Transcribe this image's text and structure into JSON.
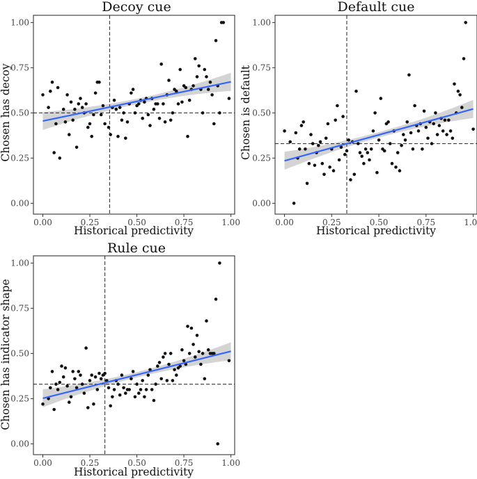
{
  "chart_data": [
    {
      "type": "scatter",
      "title": "Decoy cue",
      "xlabel": "Historical predictivity",
      "ylabel": "Chosen has decoy",
      "xlim": [
        -0.05,
        1.02
      ],
      "ylim": [
        -0.06,
        1.04
      ],
      "xticks": [
        0,
        0.25,
        0.5,
        0.75,
        1
      ],
      "xtick_labels": [
        "0.00",
        "0.25",
        "0.50",
        "0.75",
        "1.00"
      ],
      "yticks": [
        0,
        0.25,
        0.5,
        0.75,
        1
      ],
      "ytick_labels": [
        "0.00",
        "0.25",
        "0.50",
        "0.75",
        "1.00"
      ],
      "vline_x": 0.355,
      "hline_y": 0.5,
      "fit": {
        "x0": 0,
        "y0": 0.455,
        "x1": 1,
        "y1": 0.672,
        "band_halfwidth_ends": 0.05,
        "band_halfwidth_min": 0.015,
        "band_center_x": 0.5
      },
      "points": [
        [
          0.0,
          0.6
        ],
        [
          0.03,
          0.53
        ],
        [
          0.04,
          0.62
        ],
        [
          0.05,
          0.67
        ],
        [
          0.06,
          0.28
        ],
        [
          0.07,
          0.44
        ],
        [
          0.08,
          0.64
        ],
        [
          0.09,
          0.25
        ],
        [
          0.11,
          0.52
        ],
        [
          0.12,
          0.45
        ],
        [
          0.13,
          0.6
        ],
        [
          0.14,
          0.38
        ],
        [
          0.15,
          0.56
        ],
        [
          0.16,
          0.46
        ],
        [
          0.17,
          0.52
        ],
        [
          0.18,
          0.31
        ],
        [
          0.19,
          0.55
        ],
        [
          0.2,
          0.58
        ],
        [
          0.21,
          0.53
        ],
        [
          0.22,
          0.5
        ],
        [
          0.23,
          0.55
        ],
        [
          0.24,
          0.42
        ],
        [
          0.25,
          0.44
        ],
        [
          0.26,
          0.37
        ],
        [
          0.27,
          0.49
        ],
        [
          0.28,
          0.61
        ],
        [
          0.29,
          0.67
        ],
        [
          0.3,
          0.67
        ],
        [
          0.31,
          0.49
        ],
        [
          0.32,
          0.54
        ],
        [
          0.33,
          0.44
        ],
        [
          0.35,
          0.42
        ],
        [
          0.36,
          0.38
        ],
        [
          0.37,
          0.53
        ],
        [
          0.38,
          0.57
        ],
        [
          0.39,
          0.52
        ],
        [
          0.4,
          0.37
        ],
        [
          0.41,
          0.53
        ],
        [
          0.42,
          0.46
        ],
        [
          0.43,
          0.5
        ],
        [
          0.44,
          0.36
        ],
        [
          0.45,
          0.45
        ],
        [
          0.46,
          0.55
        ],
        [
          0.47,
          0.61
        ],
        [
          0.48,
          0.63
        ],
        [
          0.49,
          0.5
        ],
        [
          0.5,
          0.54
        ],
        [
          0.51,
          0.55
        ],
        [
          0.52,
          0.57
        ],
        [
          0.53,
          0.47
        ],
        [
          0.54,
          0.56
        ],
        [
          0.55,
          0.58
        ],
        [
          0.56,
          0.49
        ],
        [
          0.57,
          0.43
        ],
        [
          0.58,
          0.58
        ],
        [
          0.59,
          0.52
        ],
        [
          0.6,
          0.55
        ],
        [
          0.61,
          0.55
        ],
        [
          0.62,
          0.47
        ],
        [
          0.63,
          0.77
        ],
        [
          0.64,
          0.55
        ],
        [
          0.65,
          0.45
        ],
        [
          0.66,
          0.6
        ],
        [
          0.67,
          0.68
        ],
        [
          0.68,
          0.46
        ],
        [
          0.69,
          0.5
        ],
        [
          0.7,
          0.63
        ],
        [
          0.71,
          0.62
        ],
        [
          0.72,
          0.55
        ],
        [
          0.73,
          0.74
        ],
        [
          0.74,
          0.56
        ],
        [
          0.75,
          0.65
        ],
        [
          0.76,
          0.64
        ],
        [
          0.77,
          0.37
        ],
        [
          0.78,
          0.57
        ],
        [
          0.79,
          0.63
        ],
        [
          0.8,
          0.65
        ],
        [
          0.81,
          0.8
        ],
        [
          0.82,
          0.7
        ],
        [
          0.83,
          0.76
        ],
        [
          0.84,
          0.63
        ],
        [
          0.85,
          0.5
        ],
        [
          0.86,
          0.74
        ],
        [
          0.87,
          0.7
        ],
        [
          0.88,
          0.63
        ],
        [
          0.89,
          0.67
        ],
        [
          0.9,
          0.6
        ],
        [
          0.91,
          0.44
        ],
        [
          0.92,
          0.9
        ],
        [
          0.93,
          0.65
        ],
        [
          0.94,
          0.5
        ],
        [
          0.95,
          1.0
        ],
        [
          0.96,
          1.0
        ],
        [
          0.99,
          0.58
        ]
      ]
    },
    {
      "type": "scatter",
      "title": "Default cue",
      "xlabel": "Historical predictivity",
      "ylabel": "Chosen is default",
      "xlim": [
        -0.05,
        1.02
      ],
      "ylim": [
        -0.06,
        1.04
      ],
      "xticks": [
        0,
        0.25,
        0.5,
        0.75,
        1
      ],
      "xtick_labels": [
        "0.00",
        "0.25",
        "0.50",
        "0.75",
        "1.00"
      ],
      "yticks": [
        0,
        0.25,
        0.5,
        0.75,
        1
      ],
      "ytick_labels": [
        "0.00",
        "0.25",
        "0.50",
        "0.75",
        "1.00"
      ],
      "vline_x": 0.33,
      "hline_y": 0.33,
      "fit": {
        "x0": 0,
        "y0": 0.235,
        "x1": 1,
        "y1": 0.522,
        "band_halfwidth_ends": 0.05,
        "band_halfwidth_min": 0.015,
        "band_center_x": 0.5
      },
      "points": [
        [
          0.0,
          0.4
        ],
        [
          0.03,
          0.34
        ],
        [
          0.05,
          0.0
        ],
        [
          0.06,
          0.39
        ],
        [
          0.07,
          0.25
        ],
        [
          0.08,
          0.3
        ],
        [
          0.09,
          0.43
        ],
        [
          0.1,
          0.45
        ],
        [
          0.11,
          0.3
        ],
        [
          0.12,
          0.11
        ],
        [
          0.13,
          0.22
        ],
        [
          0.14,
          0.38
        ],
        [
          0.15,
          0.33
        ],
        [
          0.16,
          0.21
        ],
        [
          0.17,
          0.28
        ],
        [
          0.18,
          0.32
        ],
        [
          0.19,
          0.34
        ],
        [
          0.2,
          0.22
        ],
        [
          0.21,
          0.16
        ],
        [
          0.22,
          0.36
        ],
        [
          0.23,
          0.44
        ],
        [
          0.24,
          0.2
        ],
        [
          0.25,
          0.3
        ],
        [
          0.26,
          0.18
        ],
        [
          0.27,
          0.46
        ],
        [
          0.28,
          0.54
        ],
        [
          0.29,
          0.24
        ],
        [
          0.3,
          0.31
        ],
        [
          0.31,
          0.48
        ],
        [
          0.32,
          0.27
        ],
        [
          0.33,
          0.29
        ],
        [
          0.34,
          0.35
        ],
        [
          0.35,
          0.13
        ],
        [
          0.36,
          0.34
        ],
        [
          0.37,
          0.16
        ],
        [
          0.38,
          0.62
        ],
        [
          0.39,
          0.33
        ],
        [
          0.4,
          0.28
        ],
        [
          0.41,
          0.26
        ],
        [
          0.42,
          0.22
        ],
        [
          0.43,
          0.3
        ],
        [
          0.44,
          0.28
        ],
        [
          0.45,
          0.24
        ],
        [
          0.46,
          0.3
        ],
        [
          0.47,
          0.4
        ],
        [
          0.48,
          0.5
        ],
        [
          0.49,
          0.17
        ],
        [
          0.5,
          0.35
        ],
        [
          0.51,
          0.58
        ],
        [
          0.52,
          0.3
        ],
        [
          0.53,
          0.29
        ],
        [
          0.54,
          0.44
        ],
        [
          0.55,
          0.45
        ],
        [
          0.56,
          0.33
        ],
        [
          0.57,
          0.22
        ],
        [
          0.58,
          0.4
        ],
        [
          0.59,
          0.2
        ],
        [
          0.6,
          0.28
        ],
        [
          0.61,
          0.18
        ],
        [
          0.62,
          0.32
        ],
        [
          0.63,
          0.38
        ],
        [
          0.64,
          0.35
        ],
        [
          0.65,
          0.45
        ],
        [
          0.66,
          0.71
        ],
        [
          0.67,
          0.39
        ],
        [
          0.68,
          0.3
        ],
        [
          0.69,
          0.54
        ],
        [
          0.7,
          0.43
        ],
        [
          0.71,
          0.4
        ],
        [
          0.72,
          0.44
        ],
        [
          0.73,
          0.3
        ],
        [
          0.74,
          0.51
        ],
        [
          0.75,
          0.42
        ],
        [
          0.76,
          0.36
        ],
        [
          0.77,
          0.45
        ],
        [
          0.78,
          0.33
        ],
        [
          0.79,
          0.44
        ],
        [
          0.8,
          0.5
        ],
        [
          0.81,
          0.38
        ],
        [
          0.82,
          0.43
        ],
        [
          0.83,
          0.47
        ],
        [
          0.84,
          0.4
        ],
        [
          0.85,
          0.46
        ],
        [
          0.86,
          0.38
        ],
        [
          0.87,
          0.46
        ],
        [
          0.88,
          0.4
        ],
        [
          0.89,
          0.36
        ],
        [
          0.9,
          0.66
        ],
        [
          0.91,
          0.5
        ],
        [
          0.92,
          0.62
        ],
        [
          0.93,
          0.6
        ],
        [
          0.94,
          0.53
        ],
        [
          0.95,
          0.8
        ],
        [
          0.96,
          1.0
        ],
        [
          1.0,
          0.41
        ]
      ]
    },
    {
      "type": "scatter",
      "title": "Rule cue",
      "xlabel": "Historical predictivity",
      "ylabel": "Chosen has indicator shape",
      "xlim": [
        -0.05,
        1.02
      ],
      "ylim": [
        -0.06,
        1.04
      ],
      "xticks": [
        0,
        0.25,
        0.5,
        0.75,
        1
      ],
      "xtick_labels": [
        "0.00",
        "0.25",
        "0.50",
        "0.75",
        "1.00"
      ],
      "yticks": [
        0,
        0.25,
        0.5,
        0.75,
        1
      ],
      "ytick_labels": [
        "0.00",
        "0.25",
        "0.50",
        "0.75",
        "1.00"
      ],
      "vline_x": 0.33,
      "hline_y": 0.33,
      "fit": {
        "x0": 0,
        "y0": 0.252,
        "x1": 1,
        "y1": 0.512,
        "band_halfwidth_ends": 0.05,
        "band_halfwidth_min": 0.015,
        "band_center_x": 0.5
      },
      "points": [
        [
          0.0,
          0.22
        ],
        [
          0.03,
          0.25
        ],
        [
          0.04,
          0.31
        ],
        [
          0.05,
          0.4
        ],
        [
          0.06,
          0.19
        ],
        [
          0.07,
          0.33
        ],
        [
          0.08,
          0.3
        ],
        [
          0.09,
          0.34
        ],
        [
          0.1,
          0.43
        ],
        [
          0.11,
          0.37
        ],
        [
          0.12,
          0.42
        ],
        [
          0.13,
          0.32
        ],
        [
          0.14,
          0.23
        ],
        [
          0.15,
          0.26
        ],
        [
          0.16,
          0.4
        ],
        [
          0.17,
          0.36
        ],
        [
          0.18,
          0.31
        ],
        [
          0.19,
          0.4
        ],
        [
          0.2,
          0.38
        ],
        [
          0.21,
          0.33
        ],
        [
          0.22,
          0.28
        ],
        [
          0.23,
          0.53
        ],
        [
          0.24,
          0.2
        ],
        [
          0.25,
          0.35
        ],
        [
          0.26,
          0.38
        ],
        [
          0.27,
          0.22
        ],
        [
          0.28,
          0.37
        ],
        [
          0.29,
          0.3
        ],
        [
          0.3,
          0.39
        ],
        [
          0.31,
          0.36
        ],
        [
          0.32,
          0.38
        ],
        [
          0.33,
          0.39
        ],
        [
          0.34,
          0.35
        ],
        [
          0.35,
          0.31
        ],
        [
          0.36,
          0.21
        ],
        [
          0.37,
          0.26
        ],
        [
          0.38,
          0.3
        ],
        [
          0.39,
          0.35
        ],
        [
          0.4,
          0.33
        ],
        [
          0.41,
          0.27
        ],
        [
          0.42,
          0.38
        ],
        [
          0.43,
          0.31
        ],
        [
          0.44,
          0.28
        ],
        [
          0.45,
          0.3
        ],
        [
          0.46,
          0.3
        ],
        [
          0.47,
          0.36
        ],
        [
          0.48,
          0.4
        ],
        [
          0.49,
          0.26
        ],
        [
          0.5,
          0.33
        ],
        [
          0.51,
          0.28
        ],
        [
          0.52,
          0.3
        ],
        [
          0.53,
          0.35
        ],
        [
          0.54,
          0.26
        ],
        [
          0.55,
          0.3
        ],
        [
          0.56,
          0.38
        ],
        [
          0.57,
          0.41
        ],
        [
          0.58,
          0.3
        ],
        [
          0.59,
          0.24
        ],
        [
          0.6,
          0.33
        ],
        [
          0.61,
          0.43
        ],
        [
          0.62,
          0.45
        ],
        [
          0.63,
          0.36
        ],
        [
          0.64,
          0.48
        ],
        [
          0.65,
          0.5
        ],
        [
          0.66,
          0.35
        ],
        [
          0.67,
          0.44
        ],
        [
          0.68,
          0.5
        ],
        [
          0.69,
          0.35
        ],
        [
          0.7,
          0.41
        ],
        [
          0.71,
          0.38
        ],
        [
          0.72,
          0.42
        ],
        [
          0.73,
          0.43
        ],
        [
          0.74,
          0.52
        ],
        [
          0.75,
          0.46
        ],
        [
          0.76,
          0.44
        ],
        [
          0.77,
          0.65
        ],
        [
          0.78,
          0.5
        ],
        [
          0.79,
          0.64
        ],
        [
          0.8,
          0.55
        ],
        [
          0.81,
          0.48
        ],
        [
          0.82,
          0.6
        ],
        [
          0.83,
          0.51
        ],
        [
          0.84,
          0.44
        ],
        [
          0.85,
          0.5
        ],
        [
          0.86,
          0.36
        ],
        [
          0.87,
          0.68
        ],
        [
          0.88,
          0.52
        ],
        [
          0.89,
          0.5
        ],
        [
          0.9,
          0.5
        ],
        [
          0.91,
          0.5
        ],
        [
          0.92,
          0.8
        ],
        [
          0.93,
          0.0
        ],
        [
          0.94,
          1.0
        ],
        [
          0.99,
          0.46
        ]
      ]
    }
  ]
}
